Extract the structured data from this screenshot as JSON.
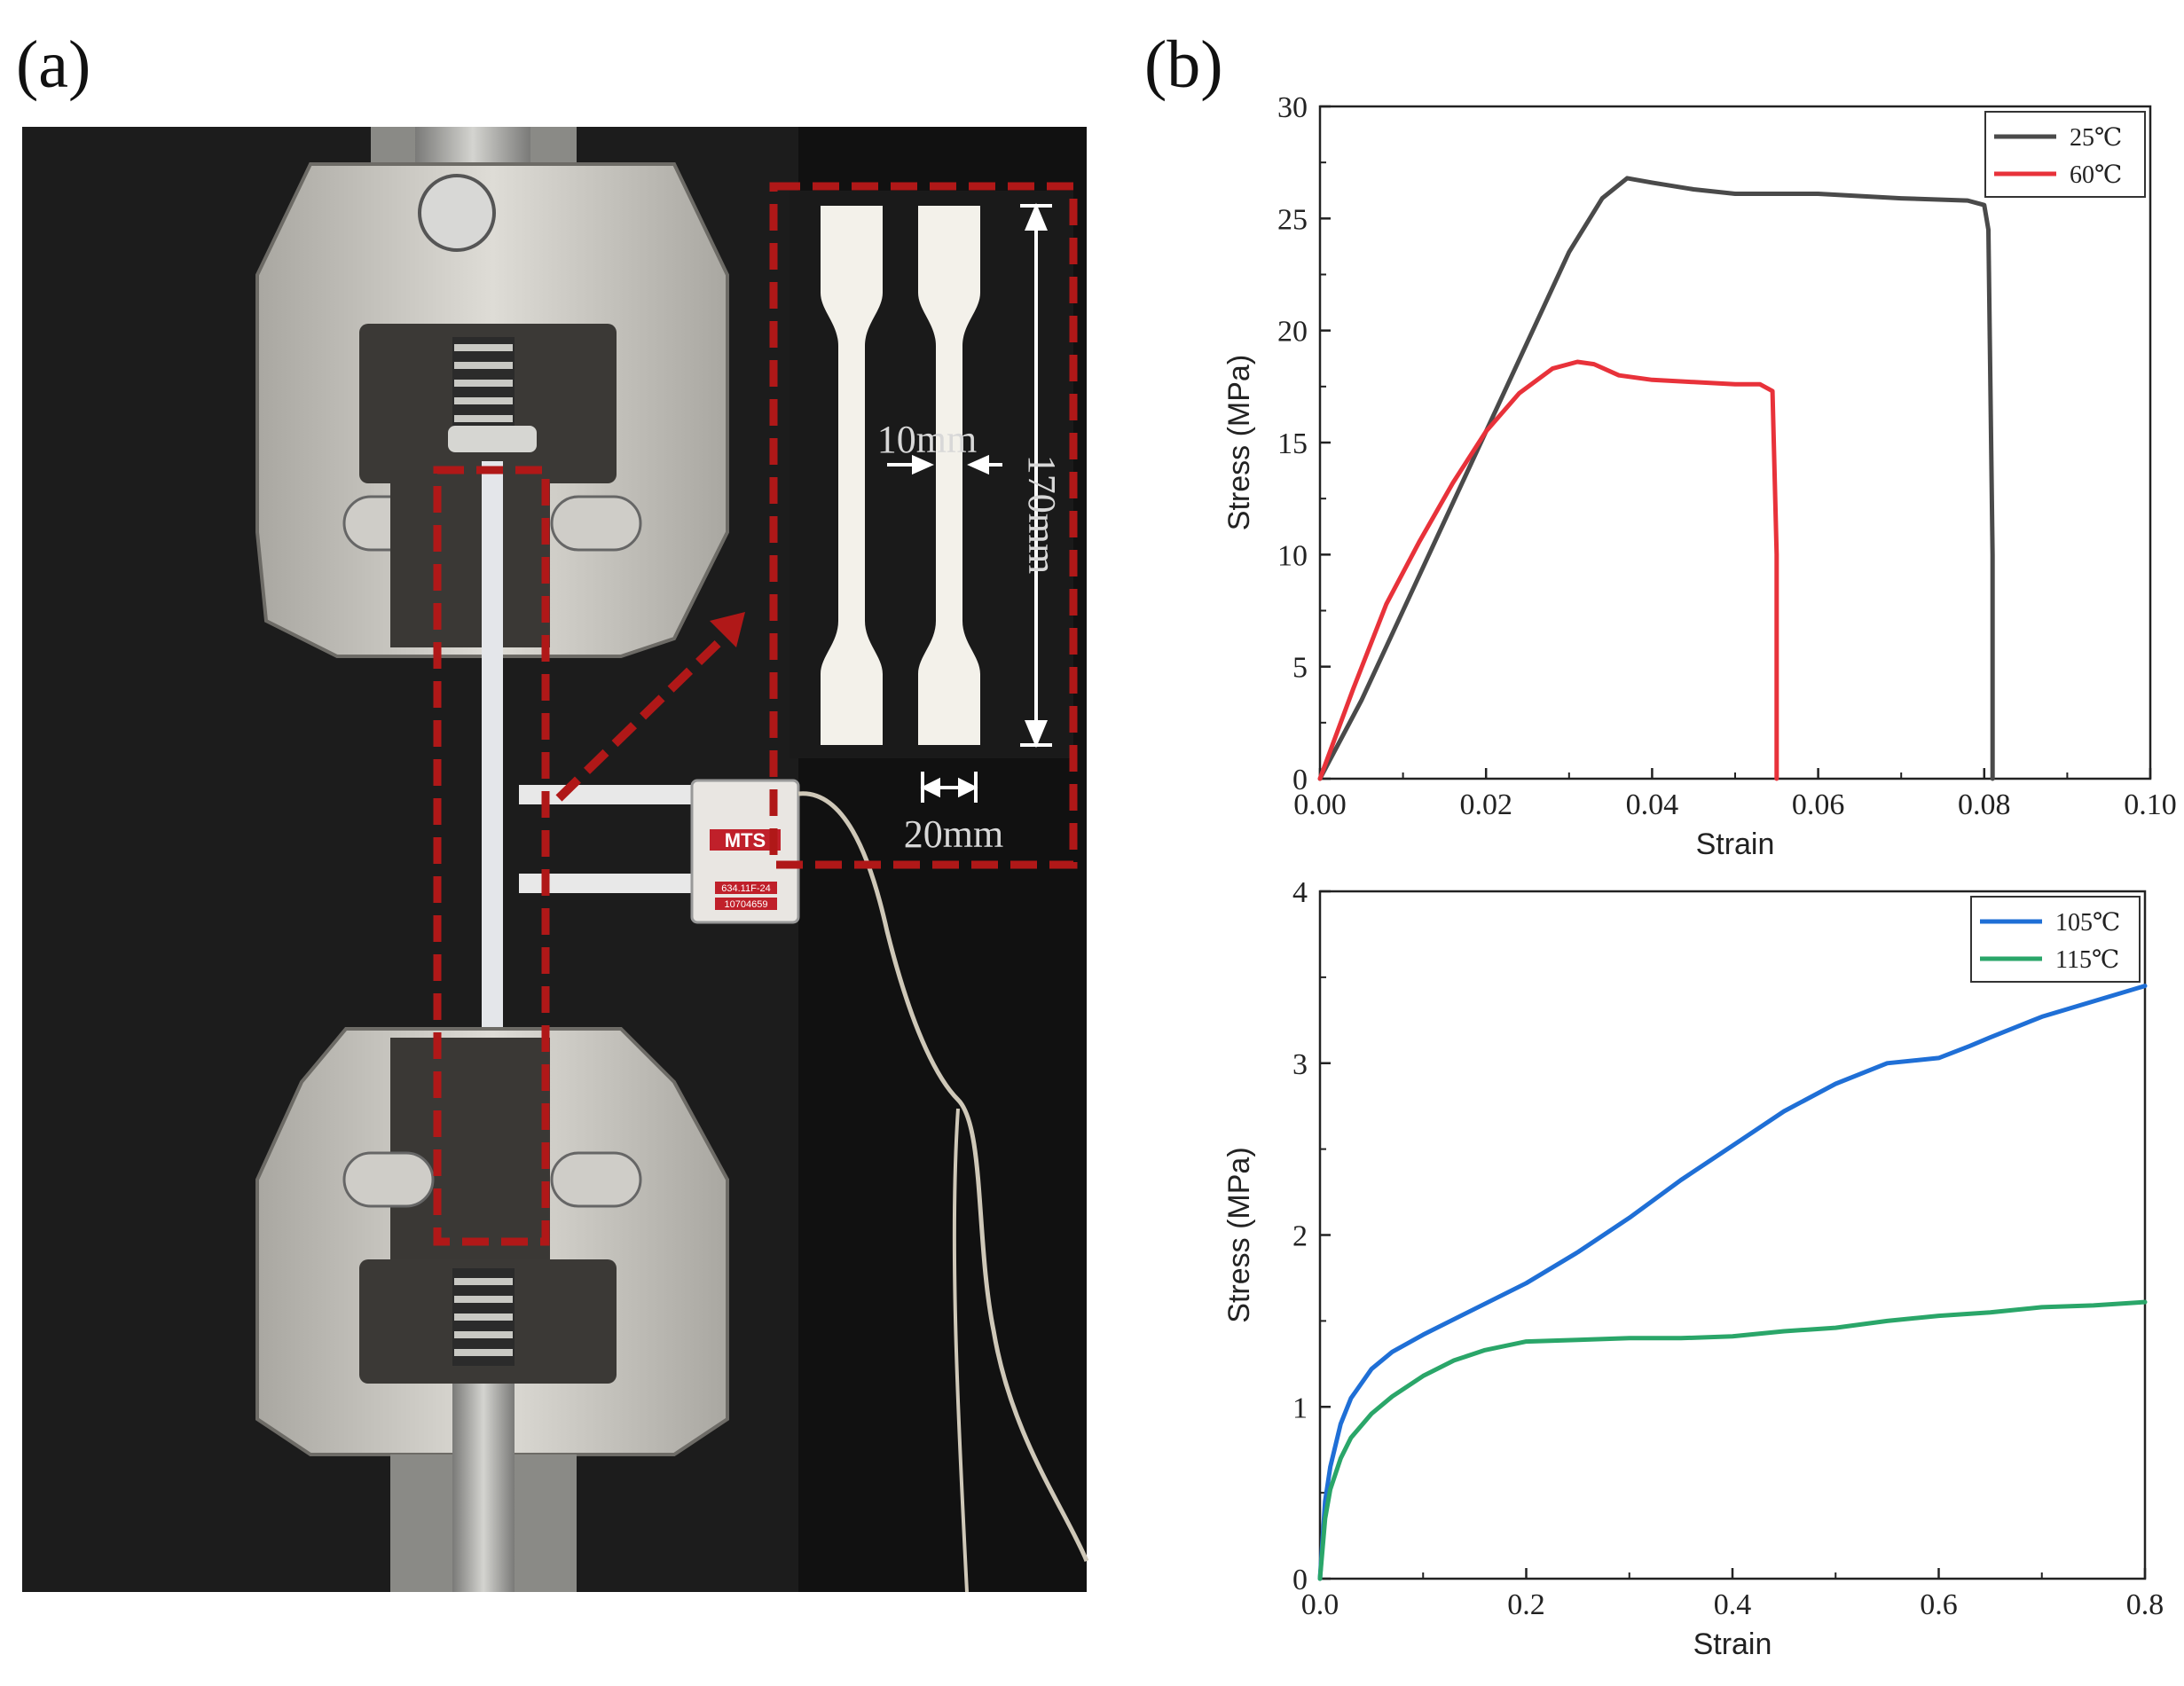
{
  "panels": {
    "a": "(a)",
    "b": "(b)"
  },
  "photo": {
    "dim_width": "10mm",
    "dim_length": "170mm",
    "dim_grip": "20mm",
    "extensometer_brand": "MTS",
    "extensometer_model": "634.11F-24",
    "extensometer_serial": "10704659",
    "colors": {
      "annotation": "#b01818",
      "dimension_text": "#d8d8d8",
      "background": "#1c1c1c",
      "grip": "#c8c6c0"
    }
  },
  "chart_data": [
    {
      "type": "line",
      "xlabel": "Strain",
      "ylabel": "Stress (MPa)",
      "xlim": [
        0,
        0.1
      ],
      "ylim": [
        0,
        30
      ],
      "xticks": [
        "0.00",
        "0.02",
        "0.04",
        "0.06",
        "0.08",
        "0.10"
      ],
      "yticks": [
        "0",
        "5",
        "10",
        "15",
        "20",
        "25",
        "30"
      ],
      "legend_position": "top-right",
      "series": [
        {
          "name": "25℃",
          "color": "#4a4a4a",
          "x": [
            0,
            0.005,
            0.01,
            0.015,
            0.02,
            0.025,
            0.03,
            0.034,
            0.037,
            0.04,
            0.045,
            0.05,
            0.06,
            0.07,
            0.078,
            0.08,
            0.0805,
            0.081,
            0.081
          ],
          "y": [
            0,
            3.5,
            7.5,
            11.5,
            15.5,
            19.5,
            23.5,
            25.9,
            26.8,
            26.6,
            26.3,
            26.1,
            26.1,
            25.9,
            25.8,
            25.6,
            24.5,
            10,
            0
          ]
        },
        {
          "name": "60℃",
          "color": "#e8323a",
          "x": [
            0,
            0.004,
            0.008,
            0.012,
            0.016,
            0.02,
            0.024,
            0.028,
            0.031,
            0.033,
            0.036,
            0.04,
            0.045,
            0.05,
            0.053,
            0.0545,
            0.055,
            0.055
          ],
          "y": [
            0,
            4,
            7.8,
            10.6,
            13.2,
            15.5,
            17.2,
            18.3,
            18.6,
            18.5,
            18.0,
            17.8,
            17.7,
            17.6,
            17.6,
            17.3,
            10,
            0
          ]
        }
      ]
    },
    {
      "type": "line",
      "xlabel": "Strain",
      "ylabel": "Stress (MPa)",
      "xlim": [
        0,
        0.8
      ],
      "ylim": [
        0,
        4
      ],
      "xticks": [
        "0.0",
        "0.2",
        "0.4",
        "0.6",
        "0.8"
      ],
      "yticks": [
        "0",
        "1",
        "2",
        "3",
        "4"
      ],
      "legend_position": "top-right",
      "series": [
        {
          "name": "105℃",
          "color": "#1f6fd6",
          "x": [
            0,
            0.005,
            0.01,
            0.02,
            0.03,
            0.05,
            0.07,
            0.1,
            0.15,
            0.2,
            0.25,
            0.3,
            0.35,
            0.4,
            0.45,
            0.5,
            0.55,
            0.6,
            0.63,
            0.65,
            0.7,
            0.75,
            0.8
          ],
          "y": [
            0,
            0.45,
            0.65,
            0.9,
            1.05,
            1.22,
            1.32,
            1.42,
            1.57,
            1.72,
            1.9,
            2.1,
            2.32,
            2.52,
            2.72,
            2.88,
            3.0,
            3.03,
            3.1,
            3.15,
            3.27,
            3.36,
            3.45
          ]
        },
        {
          "name": "115℃",
          "color": "#2aa669",
          "x": [
            0,
            0.005,
            0.01,
            0.02,
            0.03,
            0.05,
            0.07,
            0.1,
            0.13,
            0.16,
            0.2,
            0.25,
            0.3,
            0.35,
            0.4,
            0.45,
            0.5,
            0.55,
            0.6,
            0.65,
            0.7,
            0.75,
            0.8
          ],
          "y": [
            0,
            0.35,
            0.52,
            0.7,
            0.82,
            0.96,
            1.06,
            1.18,
            1.27,
            1.33,
            1.38,
            1.39,
            1.4,
            1.4,
            1.41,
            1.44,
            1.46,
            1.5,
            1.53,
            1.55,
            1.58,
            1.59,
            1.61
          ]
        }
      ]
    }
  ]
}
